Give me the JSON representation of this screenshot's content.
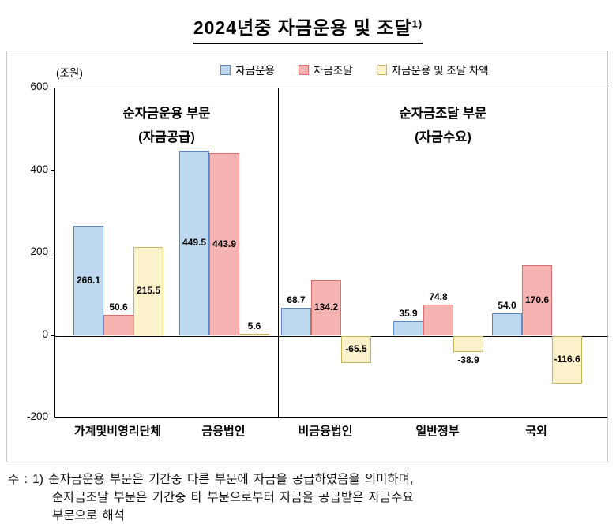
{
  "title": {
    "text": "2024년중 자금운용 및 조달",
    "superscript": "1)"
  },
  "chart_data": {
    "type": "bar",
    "title": "2024년중 자금운용 및 조달 1)",
    "unit_label": "(조원)",
    "categories": [
      "가계및비영리단체",
      "금융법인",
      "비금융법인",
      "일반정부",
      "국외"
    ],
    "series": [
      {
        "name": "자금운용",
        "fill": "#BDD7EE",
        "border": "#5B87C5",
        "values": [
          266.1,
          449.5,
          68.7,
          35.9,
          54.0
        ]
      },
      {
        "name": "자금조달",
        "fill": "#F5B3B1",
        "border": "#DC6E6E",
        "values": [
          50.6,
          443.9,
          134.2,
          74.8,
          170.6
        ]
      },
      {
        "name": "자금운용 및 조달 차액",
        "fill": "#FBF1CA",
        "border": "#C7B45C",
        "values": [
          215.5,
          5.6,
          -65.5,
          -38.9,
          -116.6
        ]
      }
    ],
    "ylim": [
      -200,
      600
    ],
    "yticks": [
      600,
      400,
      200,
      0,
      -200
    ],
    "grid": false,
    "legend_position": "top",
    "sections": [
      {
        "title": "순자금운용 부문",
        "subtitle": "(자금공급)",
        "category_indexes": [
          0,
          1
        ]
      },
      {
        "title": "순자금조달 부문",
        "subtitle": "(자금수요)",
        "category_indexes": [
          2,
          3,
          4
        ]
      }
    ]
  },
  "note": {
    "lines": [
      "주 : 1) 순자금운용 부문은 기간중 다른 부문에 자금을 공급하였음을 의미하며,",
      "순자금조달 부문은 기간중 타 부문으로부터 자금을 공급받은 자금수요",
      "부문으로 해석"
    ]
  }
}
